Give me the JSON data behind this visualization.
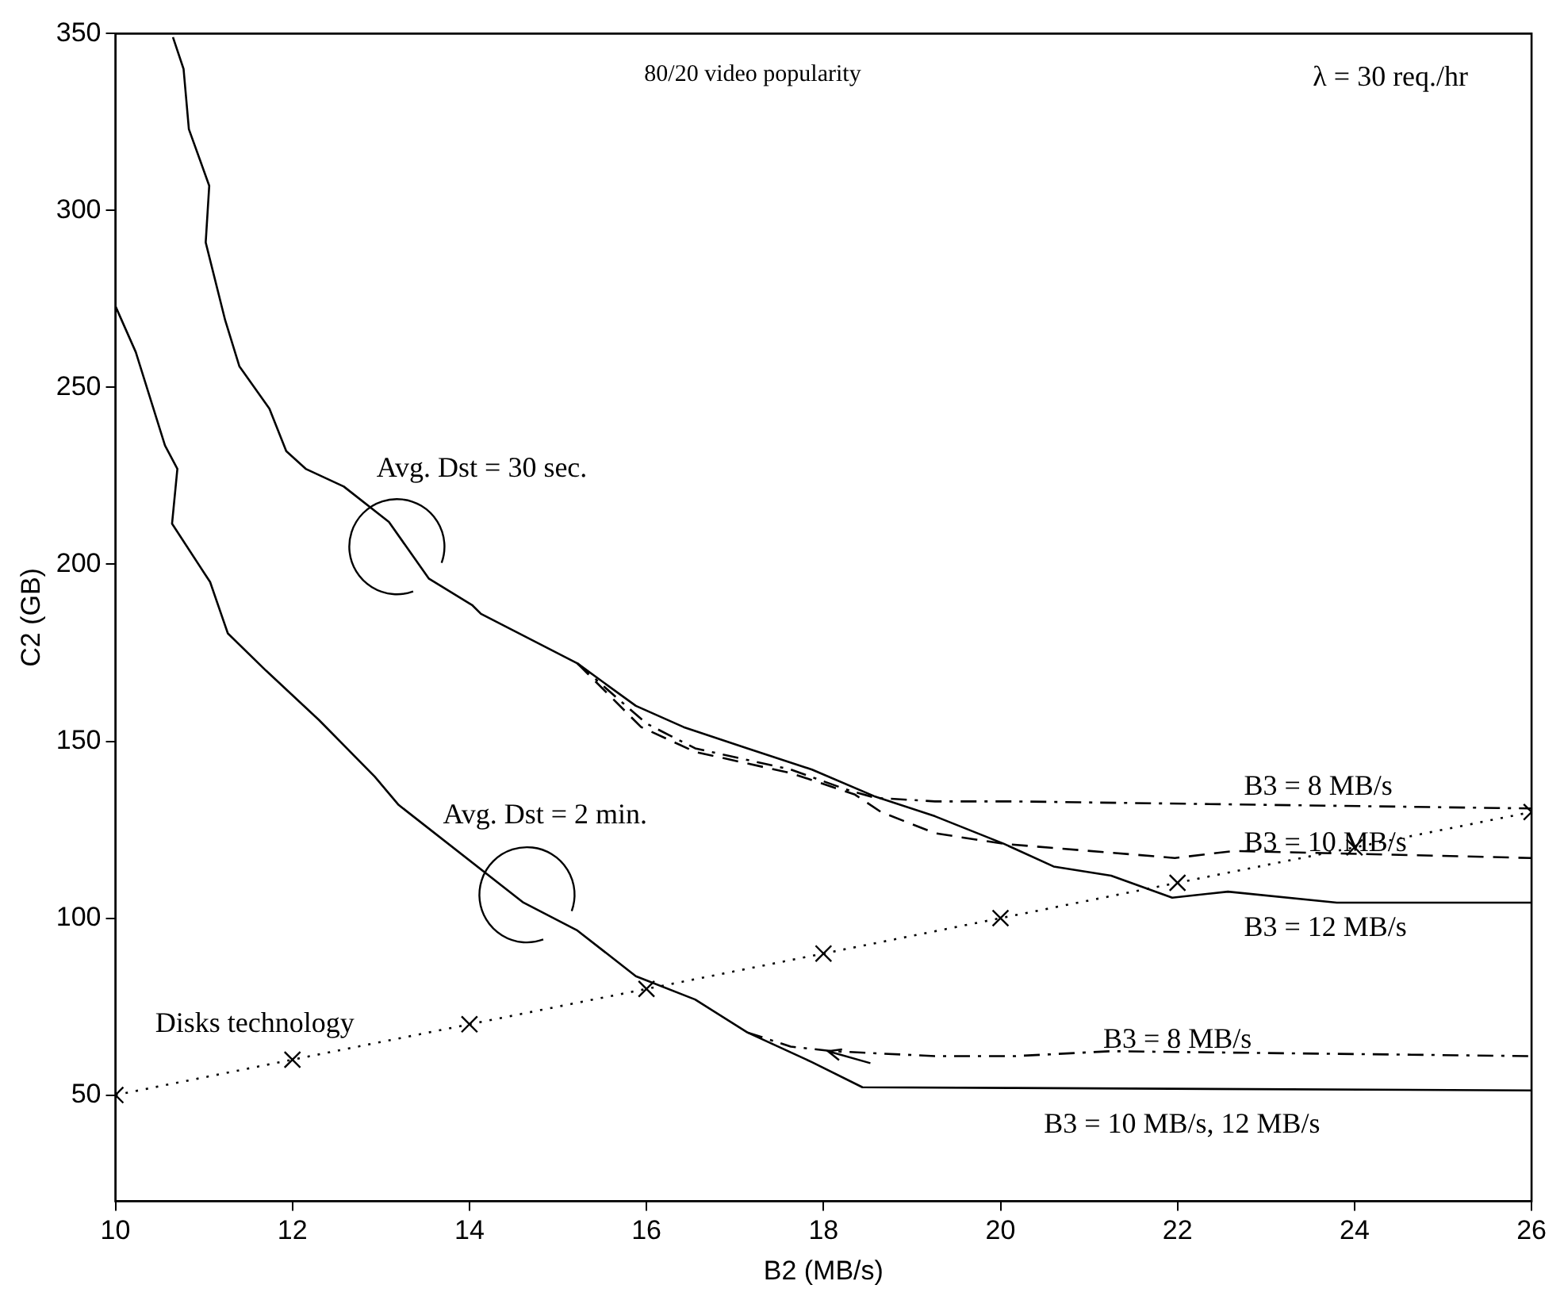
{
  "chart_data": {
    "type": "line",
    "title": "80/20 video popularity",
    "xlabel": "B2 (MB/s)",
    "ylabel": "C2 (GB)",
    "xlim": [
      10,
      26
    ],
    "ylim": [
      20,
      350
    ],
    "xticks": [
      10,
      12,
      14,
      16,
      18,
      20,
      22,
      24,
      26
    ],
    "yticks": [
      50,
      100,
      150,
      200,
      250,
      300,
      350
    ],
    "grid": false,
    "series": [
      {
        "color": "#000000",
        "line_style": "solid",
        "marker": "none",
        "x": [
          10.65,
          10.77,
          10.83,
          11.06,
          11.02,
          11.24,
          11.4,
          11.74,
          11.93,
          12.15,
          12.58,
          13.09,
          13.54,
          14.03,
          14.13,
          15.22,
          15.88,
          16.42,
          17.14,
          17.87,
          18.57,
          19.26,
          20.04,
          20.6,
          21.25,
          21.94,
          22.57,
          23.8,
          26
        ],
        "values": [
          349,
          340,
          323,
          307,
          291,
          269,
          256,
          244,
          232,
          227,
          222,
          212,
          196,
          188.5,
          186,
          172,
          160,
          154,
          148,
          142,
          134.5,
          128.8,
          121,
          114.6,
          112,
          105.8,
          107.5,
          104.4,
          104.4
        ]
      },
      {
        "color": "#000000",
        "line_style": "dashed",
        "marker": "none",
        "x": [
          15.22,
          15.94,
          16.55,
          17.63,
          18.35,
          18.65,
          19.26,
          20.04,
          21.97,
          22.64,
          26
        ],
        "values": [
          172,
          154,
          147,
          141,
          135,
          130,
          124,
          121,
          117,
          119,
          117
        ]
      },
      {
        "color": "#000000",
        "line_style": "dashdot",
        "marker": "none",
        "x": [
          15.22,
          16.0,
          16.55,
          17.63,
          18.3,
          18.59,
          19.26,
          20.16,
          26
        ],
        "values": [
          172,
          155,
          148,
          142,
          136,
          134,
          133,
          133,
          131
        ]
      },
      {
        "color": "#000000",
        "line_style": "solid",
        "marker": "none",
        "x": [
          10,
          10.23,
          10.56,
          10.7,
          10.64,
          11.07,
          11.27,
          11.7,
          12.3,
          12.93,
          13.2,
          14.61,
          15.22,
          15.88,
          16.55,
          17.14,
          17.87,
          18.44,
          20.16,
          26
        ],
        "values": [
          273,
          260,
          233.6,
          227,
          211.5,
          195,
          180.5,
          170,
          156,
          140,
          132,
          104.4,
          96.5,
          83.6,
          77,
          67.7,
          59.3,
          52.2,
          52,
          51.3
        ]
      },
      {
        "color": "#000000",
        "line_style": "dashdot",
        "marker": "none",
        "x": [
          17.14,
          17.63,
          18.1,
          19.26,
          20.16,
          21.25,
          26
        ],
        "values": [
          67.7,
          63.7,
          62.4,
          61,
          61,
          62.4,
          61
        ]
      },
      {
        "color": "#000000",
        "line_style": "dotted",
        "marker": "cross",
        "x": [
          10,
          12,
          14,
          16,
          18,
          20,
          22,
          24,
          26
        ],
        "values": [
          50,
          60,
          70,
          80,
          90,
          100,
          110,
          120,
          130
        ]
      }
    ],
    "annotations": [
      "λ = 30 req./hr",
      "Avg. Dst = 30 sec.",
      "Avg. Dst = 2 min.",
      "Disks technology",
      "B3 = 8 MB/s",
      "B3 = 10 MB/s",
      "B3 = 12 MB/s",
      "B3 = 8 MB/s",
      "B3 = 10 MB/s, 12 MB/s"
    ]
  }
}
